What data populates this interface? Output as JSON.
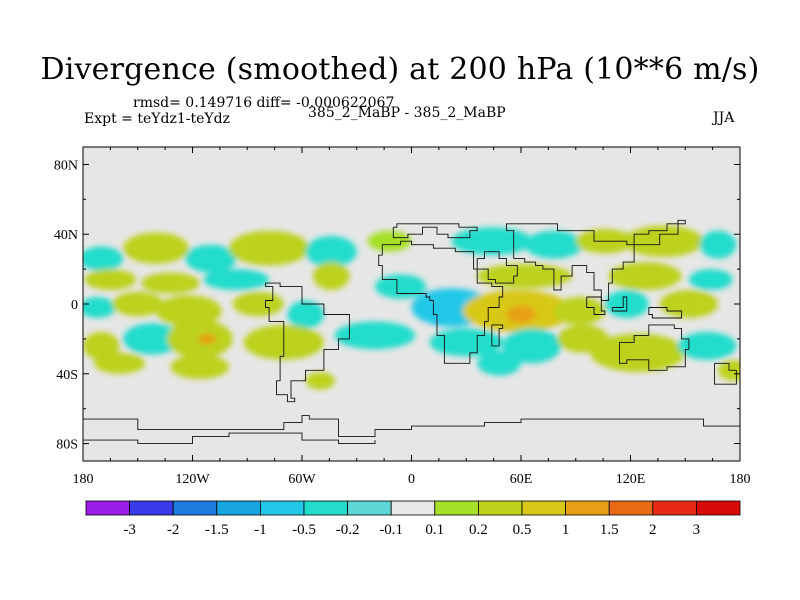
{
  "chart_data": {
    "type": "heatmap",
    "title": "Divergence (smoothed) at 200 hPa (10**6 m/s)",
    "stats": "rmsd= 0.149716 diff= -0.000622067",
    "experiment": "Expt = teYdz1-teYdz",
    "case": "385_2_MaBP - 385_2_MaBP",
    "season": "JJA",
    "xlim": [
      -180,
      180
    ],
    "ylim": [
      -90,
      90
    ],
    "x_ticks": [
      {
        "value": -180,
        "label": "180"
      },
      {
        "value": -120,
        "label": "120W"
      },
      {
        "value": -60,
        "label": "60W"
      },
      {
        "value": 0,
        "label": "0"
      },
      {
        "value": 60,
        "label": "60E"
      },
      {
        "value": 120,
        "label": "120E"
      },
      {
        "value": 180,
        "label": "180"
      }
    ],
    "y_ticks": [
      {
        "value": 80,
        "label": "80N"
      },
      {
        "value": 40,
        "label": "40N"
      },
      {
        "value": 0,
        "label": "0"
      },
      {
        "value": -40,
        "label": "40S"
      },
      {
        "value": -80,
        "label": "80S"
      }
    ],
    "colorbar_labels": [
      "-3",
      "-2",
      "-1.5",
      "-1",
      "-0.5",
      "-0.2",
      "-0.1",
      "0.1",
      "0.2",
      "0.5",
      "1",
      "1.5",
      "2",
      "3"
    ],
    "colorbar_colors": [
      "#9b1fe8",
      "#3a3ae8",
      "#1f7be0",
      "#17a6e0",
      "#22c8e8",
      "#23dccc",
      "#5ed6d6",
      "#e8e8e8",
      "#a6e028",
      "#bcd21a",
      "#d8c818",
      "#e8a016",
      "#e86a14",
      "#e82a14",
      "#d80a0a"
    ],
    "field_blobs": [
      {
        "lon": -170,
        "lat": 26,
        "rx": 12,
        "ry": 7,
        "value": -0.3
      },
      {
        "lon": -140,
        "lat": 32,
        "rx": 18,
        "ry": 9,
        "value": 0.3
      },
      {
        "lon": -110,
        "lat": 26,
        "rx": 14,
        "ry": 8,
        "value": -0.3
      },
      {
        "lon": -78,
        "lat": 32,
        "rx": 22,
        "ry": 10,
        "value": 0.35
      },
      {
        "lon": -44,
        "lat": 30,
        "rx": 14,
        "ry": 9,
        "value": -0.3
      },
      {
        "lon": -12,
        "lat": 36,
        "rx": 12,
        "ry": 6,
        "value": 0.2
      },
      {
        "lon": 44,
        "lat": 36,
        "rx": 22,
        "ry": 8,
        "value": -0.35
      },
      {
        "lon": 78,
        "lat": 34,
        "rx": 16,
        "ry": 8,
        "value": -0.3
      },
      {
        "lon": 106,
        "lat": 36,
        "rx": 16,
        "ry": 7,
        "value": 0.3
      },
      {
        "lon": 138,
        "lat": 36,
        "rx": 22,
        "ry": 9,
        "value": 0.4
      },
      {
        "lon": 168,
        "lat": 34,
        "rx": 10,
        "ry": 8,
        "value": -0.3
      },
      {
        "lon": -165,
        "lat": 14,
        "rx": 14,
        "ry": 6,
        "value": 0.25
      },
      {
        "lon": -132,
        "lat": 12,
        "rx": 16,
        "ry": 6,
        "value": 0.3
      },
      {
        "lon": -96,
        "lat": 14,
        "rx": 18,
        "ry": 6,
        "value": -0.3
      },
      {
        "lon": -44,
        "lat": 16,
        "rx": 10,
        "ry": 8,
        "value": 0.25
      },
      {
        "lon": -6,
        "lat": 10,
        "rx": 14,
        "ry": 7,
        "value": -0.3
      },
      {
        "lon": 62,
        "lat": 16,
        "rx": 26,
        "ry": 7,
        "value": 0.3
      },
      {
        "lon": 128,
        "lat": 16,
        "rx": 20,
        "ry": 8,
        "value": 0.3
      },
      {
        "lon": 164,
        "lat": 14,
        "rx": 12,
        "ry": 6,
        "value": -0.3
      },
      {
        "lon": -172,
        "lat": -2,
        "rx": 10,
        "ry": 6,
        "value": -0.3
      },
      {
        "lon": -150,
        "lat": 0,
        "rx": 14,
        "ry": 7,
        "value": 0.3
      },
      {
        "lon": -122,
        "lat": -4,
        "rx": 18,
        "ry": 9,
        "value": 0.35
      },
      {
        "lon": -84,
        "lat": 0,
        "rx": 14,
        "ry": 7,
        "value": 0.25
      },
      {
        "lon": -58,
        "lat": -6,
        "rx": 10,
        "ry": 8,
        "value": -0.25
      },
      {
        "lon": 22,
        "lat": -2,
        "rx": 22,
        "ry": 11,
        "value": -0.6
      },
      {
        "lon": 58,
        "lat": -4,
        "rx": 30,
        "ry": 12,
        "value": 0.6
      },
      {
        "lon": 60,
        "lat": -6,
        "rx": 8,
        "ry": 5,
        "value": 1.2
      },
      {
        "lon": 92,
        "lat": -4,
        "rx": 14,
        "ry": 8,
        "value": 0.3
      },
      {
        "lon": 118,
        "lat": 0,
        "rx": 12,
        "ry": 8,
        "value": -0.3
      },
      {
        "lon": 152,
        "lat": 0,
        "rx": 16,
        "ry": 8,
        "value": 0.3
      },
      {
        "lon": -170,
        "lat": -24,
        "rx": 10,
        "ry": 8,
        "value": 0.3
      },
      {
        "lon": -142,
        "lat": -20,
        "rx": 16,
        "ry": 9,
        "value": -0.4
      },
      {
        "lon": -116,
        "lat": -20,
        "rx": 18,
        "ry": 11,
        "value": 0.5
      },
      {
        "lon": -112,
        "lat": -20,
        "rx": 5,
        "ry": 3,
        "value": 1.2
      },
      {
        "lon": -70,
        "lat": -22,
        "rx": 22,
        "ry": 10,
        "value": 0.4
      },
      {
        "lon": -20,
        "lat": -18,
        "rx": 22,
        "ry": 8,
        "value": -0.3
      },
      {
        "lon": 30,
        "lat": -22,
        "rx": 20,
        "ry": 8,
        "value": -0.3
      },
      {
        "lon": 66,
        "lat": -24,
        "rx": 16,
        "ry": 10,
        "value": -0.3
      },
      {
        "lon": 94,
        "lat": -20,
        "rx": 14,
        "ry": 8,
        "value": 0.3
      },
      {
        "lon": 124,
        "lat": -28,
        "rx": 26,
        "ry": 11,
        "value": 0.5
      },
      {
        "lon": 162,
        "lat": -24,
        "rx": 16,
        "ry": 8,
        "value": -0.3
      },
      {
        "lon": -160,
        "lat": -34,
        "rx": 14,
        "ry": 6,
        "value": 0.3
      },
      {
        "lon": -116,
        "lat": -36,
        "rx": 16,
        "ry": 7,
        "value": 0.3
      },
      {
        "lon": -50,
        "lat": -44,
        "rx": 8,
        "ry": 5,
        "value": 0.3
      },
      {
        "lon": 48,
        "lat": -34,
        "rx": 12,
        "ry": 7,
        "value": -0.3
      },
      {
        "lon": 176,
        "lat": -38,
        "rx": 8,
        "ry": 6,
        "value": 0.3
      }
    ],
    "coastlines": [
      [
        [
          -10,
          44
        ],
        [
          -8,
          46
        ],
        [
          2,
          46
        ],
        [
          18,
          46
        ],
        [
          26,
          44
        ],
        [
          36,
          42
        ],
        [
          32,
          38
        ],
        [
          20,
          40
        ],
        [
          14,
          44
        ],
        [
          6,
          40
        ],
        [
          -2,
          38
        ],
        [
          -8,
          38
        ],
        [
          -10,
          44
        ]
      ],
      [
        [
          -16,
          28
        ],
        [
          -18,
          22
        ],
        [
          -16,
          14
        ],
        [
          -8,
          6
        ],
        [
          0,
          6
        ],
        [
          8,
          4
        ],
        [
          10,
          2
        ],
        [
          12,
          -6
        ],
        [
          14,
          -18
        ],
        [
          18,
          -34
        ],
        [
          24,
          -34
        ],
        [
          32,
          -28
        ],
        [
          36,
          -18
        ],
        [
          40,
          -10
        ],
        [
          42,
          -2
        ],
        [
          48,
          4
        ],
        [
          50,
          10
        ],
        [
          44,
          12
        ],
        [
          36,
          20
        ],
        [
          34,
          30
        ],
        [
          24,
          32
        ],
        [
          12,
          34
        ],
        [
          0,
          36
        ],
        [
          -6,
          34
        ],
        [
          -16,
          28
        ]
      ],
      [
        [
          36,
          20
        ],
        [
          42,
          14
        ],
        [
          46,
          12
        ],
        [
          56,
          16
        ],
        [
          58,
          22
        ],
        [
          52,
          26
        ],
        [
          48,
          30
        ],
        [
          40,
          26
        ],
        [
          36,
          20
        ]
      ],
      [
        [
          56,
          26
        ],
        [
          62,
          24
        ],
        [
          68,
          22
        ],
        [
          72,
          20
        ],
        [
          78,
          8
        ],
        [
          82,
          16
        ],
        [
          88,
          22
        ],
        [
          96,
          18
        ],
        [
          100,
          8
        ],
        [
          104,
          2
        ],
        [
          108,
          12
        ],
        [
          110,
          20
        ],
        [
          116,
          24
        ],
        [
          122,
          30
        ],
        [
          122,
          40
        ],
        [
          130,
          42
        ],
        [
          140,
          46
        ],
        [
          150,
          48
        ],
        [
          146,
          40
        ],
        [
          136,
          34
        ],
        [
          128,
          34
        ],
        [
          118,
          36
        ],
        [
          100,
          42
        ],
        [
          80,
          46
        ],
        [
          66,
          46
        ],
        [
          52,
          42
        ],
        [
          56,
          26
        ]
      ],
      [
        [
          44,
          -12
        ],
        [
          50,
          -14
        ],
        [
          48,
          -24
        ],
        [
          44,
          -24
        ],
        [
          44,
          -12
        ]
      ],
      [
        [
          114,
          -22
        ],
        [
          122,
          -18
        ],
        [
          130,
          -12
        ],
        [
          138,
          -12
        ],
        [
          144,
          -14
        ],
        [
          148,
          -20
        ],
        [
          152,
          -26
        ],
        [
          150,
          -36
        ],
        [
          140,
          -38
        ],
        [
          130,
          -32
        ],
        [
          118,
          -34
        ],
        [
          114,
          -26
        ],
        [
          114,
          -22
        ]
      ],
      [
        [
          96,
          4
        ],
        [
          104,
          -4
        ],
        [
          106,
          -6
        ],
        [
          100,
          -2
        ],
        [
          96,
          4
        ]
      ],
      [
        [
          110,
          -2
        ],
        [
          116,
          4
        ],
        [
          118,
          -4
        ],
        [
          112,
          -4
        ],
        [
          110,
          -2
        ]
      ],
      [
        [
          130,
          -2
        ],
        [
          140,
          -4
        ],
        [
          148,
          -8
        ],
        [
          140,
          -8
        ],
        [
          132,
          -6
        ],
        [
          130,
          -2
        ]
      ],
      [
        [
          166,
          -34
        ],
        [
          174,
          -38
        ],
        [
          178,
          -46
        ],
        [
          170,
          -46
        ],
        [
          166,
          -40
        ],
        [
          166,
          -34
        ]
      ],
      [
        [
          -80,
          10
        ],
        [
          -76,
          2
        ],
        [
          -80,
          -2
        ],
        [
          -78,
          -10
        ],
        [
          -70,
          -18
        ],
        [
          -70,
          -30
        ],
        [
          -72,
          -44
        ],
        [
          -74,
          -52
        ],
        [
          -68,
          -56
        ],
        [
          -64,
          -54
        ],
        [
          -66,
          -44
        ],
        [
          -58,
          -38
        ],
        [
          -48,
          -26
        ],
        [
          -40,
          -20
        ],
        [
          -34,
          -6
        ],
        [
          -48,
          0
        ],
        [
          -60,
          10
        ],
        [
          -72,
          12
        ],
        [
          -80,
          10
        ]
      ],
      [
        [
          -180,
          -66
        ],
        [
          -150,
          -72
        ],
        [
          -120,
          -72
        ],
        [
          -90,
          -72
        ],
        [
          -70,
          -68
        ],
        [
          -60,
          -64
        ],
        [
          -56,
          -66
        ],
        [
          -40,
          -76
        ],
        [
          -20,
          -72
        ],
        [
          0,
          -70
        ],
        [
          20,
          -70
        ],
        [
          40,
          -68
        ],
        [
          60,
          -66
        ],
        [
          80,
          -66
        ],
        [
          100,
          -66
        ],
        [
          120,
          -66
        ],
        [
          140,
          -66
        ],
        [
          160,
          -70
        ],
        [
          180,
          -72
        ]
      ],
      [
        [
          -180,
          -78
        ],
        [
          -150,
          -80
        ],
        [
          -120,
          -76
        ],
        [
          -100,
          -74
        ],
        [
          -80,
          -74
        ],
        [
          -60,
          -78
        ],
        [
          -40,
          -80
        ],
        [
          -20,
          -78
        ]
      ]
    ]
  }
}
